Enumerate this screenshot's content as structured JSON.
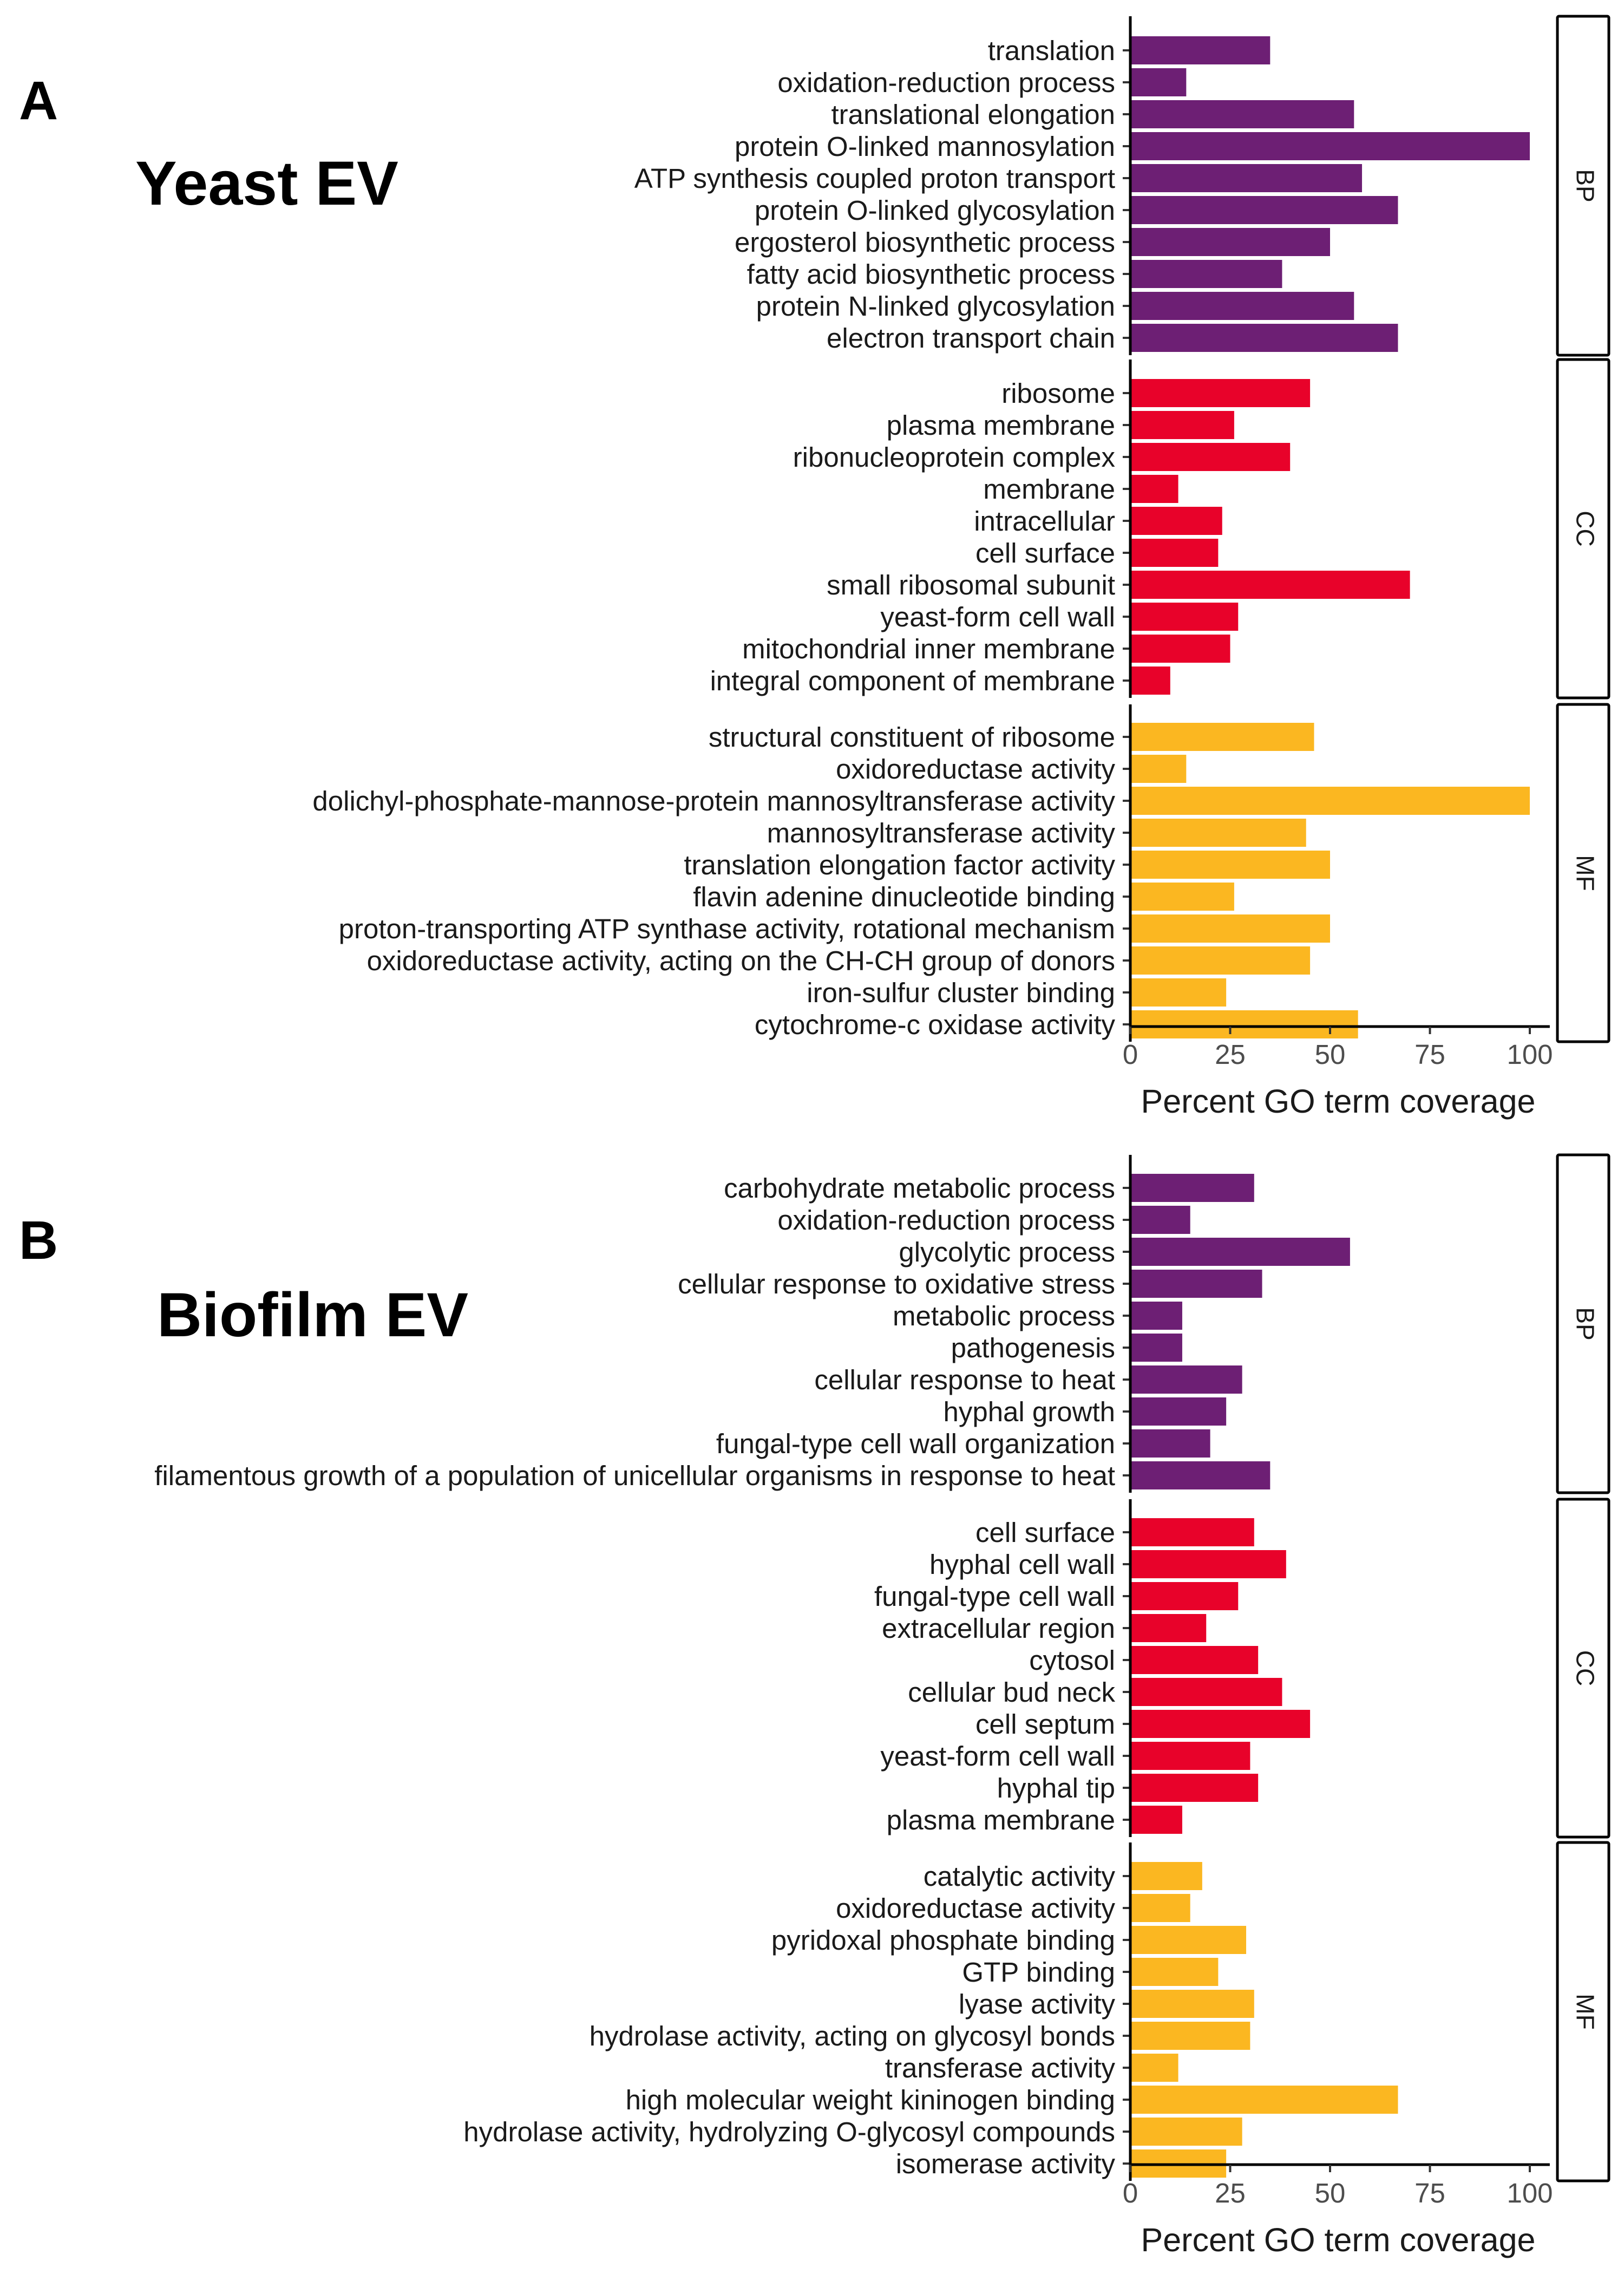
{
  "colors": {
    "BP": "#6d1f74",
    "CC": "#e8022a",
    "MF": "#fbb721"
  },
  "chart_data": [
    {
      "type": "bar",
      "panel_letter": "A",
      "panel_title": "Yeast EV",
      "xlabel": "Percent GO term coverage",
      "xlim": [
        0,
        105
      ],
      "xticks": [
        0,
        25,
        50,
        75,
        100
      ],
      "grid": false,
      "orientation": "horizontal",
      "facets": [
        {
          "strip": "BP",
          "categories": [
            "translation",
            "oxidation-reduction process",
            "translational elongation",
            "protein O-linked mannosylation",
            "ATP synthesis coupled proton transport",
            "protein O-linked glycosylation",
            "ergosterol biosynthetic process",
            "fatty acid biosynthetic process",
            "protein N-linked glycosylation",
            "electron transport chain"
          ],
          "values": [
            35,
            14,
            56,
            100,
            58,
            67,
            50,
            38,
            56,
            67
          ]
        },
        {
          "strip": "CC",
          "categories": [
            "ribosome",
            "plasma membrane",
            "ribonucleoprotein complex",
            "membrane",
            "intracellular",
            "cell surface",
            "small ribosomal subunit",
            "yeast-form cell wall",
            "mitochondrial inner membrane",
            "integral component of membrane"
          ],
          "values": [
            45,
            26,
            40,
            12,
            23,
            22,
            70,
            27,
            25,
            10
          ]
        },
        {
          "strip": "MF",
          "categories": [
            "structural constituent of ribosome",
            "oxidoreductase activity",
            "dolichyl-phosphate-mannose-protein mannosyltransferase activity",
            "mannosyltransferase activity",
            "translation elongation factor activity",
            "flavin adenine dinucleotide binding",
            "proton-transporting ATP synthase activity, rotational mechanism",
            "oxidoreductase activity, acting on the CH-CH group of donors",
            "iron-sulfur cluster binding",
            "cytochrome-c oxidase activity"
          ],
          "values": [
            46,
            14,
            100,
            44,
            50,
            26,
            50,
            45,
            24,
            57
          ]
        }
      ]
    },
    {
      "type": "bar",
      "panel_letter": "B",
      "panel_title": "Biofilm EV",
      "xlabel": "Percent GO term coverage",
      "xlim": [
        0,
        105
      ],
      "xticks": [
        0,
        25,
        50,
        75,
        100
      ],
      "grid": false,
      "orientation": "horizontal",
      "facets": [
        {
          "strip": "BP",
          "categories": [
            "carbohydrate metabolic process",
            "oxidation-reduction process",
            "glycolytic process",
            "cellular response to oxidative stress",
            "metabolic process",
            "pathogenesis",
            "cellular response to heat",
            "hyphal growth",
            "fungal-type cell wall organization",
            "filamentous growth of a population of unicellular organisms in response to heat"
          ],
          "values": [
            31,
            15,
            55,
            33,
            13,
            13,
            28,
            24,
            20,
            35
          ]
        },
        {
          "strip": "CC",
          "categories": [
            "cell surface",
            "hyphal cell wall",
            "fungal-type cell wall",
            "extracellular region",
            "cytosol",
            "cellular bud neck",
            "cell septum",
            "yeast-form cell wall",
            "hyphal tip",
            "plasma membrane"
          ],
          "values": [
            31,
            39,
            27,
            19,
            32,
            38,
            45,
            30,
            32,
            13
          ]
        },
        {
          "strip": "MF",
          "categories": [
            "catalytic activity",
            "oxidoreductase activity",
            "pyridoxal phosphate binding",
            "GTP binding",
            "lyase activity",
            "hydrolase activity, acting on glycosyl bonds",
            "transferase activity",
            "high molecular weight kininogen binding",
            "hydrolase activity, hydrolyzing O-glycosyl compounds",
            "isomerase activity"
          ],
          "values": [
            18,
            15,
            29,
            22,
            31,
            30,
            12,
            67,
            28,
            24
          ]
        }
      ]
    }
  ]
}
